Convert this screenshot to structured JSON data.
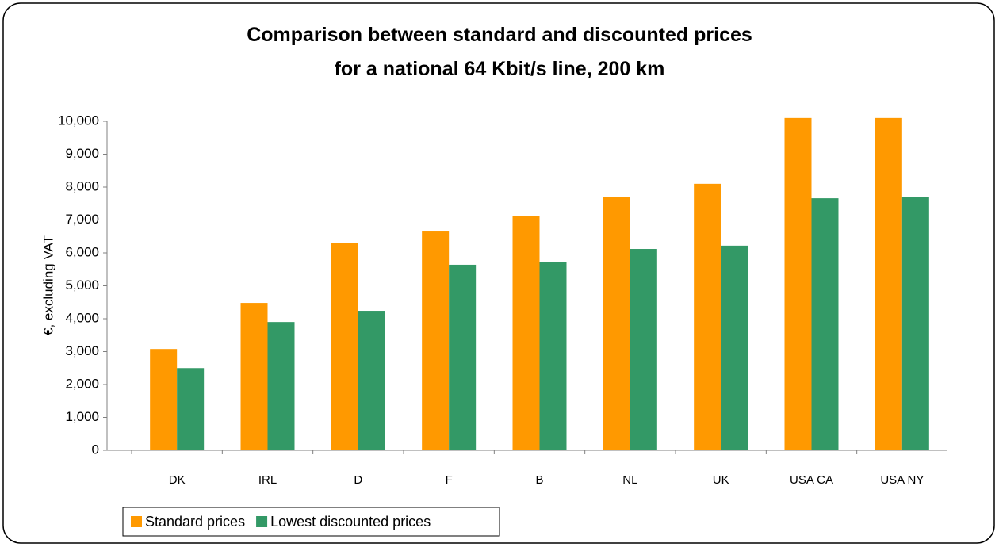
{
  "chart_data": {
    "type": "bar",
    "title": [
      "Comparison between standard and discounted prices",
      "for a national 64 Kbit/s line, 200 km"
    ],
    "ylabel": "€, excluding VAT",
    "categories": [
      "DK",
      "IRL",
      "D",
      "F",
      "B",
      "NL",
      "UK",
      "USA CA",
      "USA NY"
    ],
    "series": [
      {
        "name": "Standard prices",
        "color": "#ff9900",
        "values": [
          3080,
          4480,
          6310,
          6650,
          7130,
          7710,
          8100,
          10100,
          10100
        ]
      },
      {
        "name": "Lowest discounted prices",
        "color": "#339966",
        "values": [
          2500,
          3900,
          4240,
          5640,
          5730,
          6120,
          6220,
          7660,
          7710
        ]
      }
    ],
    "ylim": [
      0,
      10000
    ],
    "yticks": [
      0,
      {
        "value": 1000,
        "label": "1,000"
      },
      {
        "value": 2000,
        "label": "2,000"
      },
      {
        "value": 3000,
        "label": "3,000"
      },
      {
        "value": 4000,
        "label": "4,000"
      },
      {
        "value": 5000,
        "label": "5,000"
      },
      {
        "value": 6000,
        "label": "6,000"
      },
      {
        "value": 7000,
        "label": "7,000"
      },
      {
        "value": 8000,
        "label": "8,000"
      },
      {
        "value": 9000,
        "label": "9,000"
      },
      {
        "value": 10000,
        "label": "10,000"
      }
    ],
    "legend": "bottom-left"
  }
}
